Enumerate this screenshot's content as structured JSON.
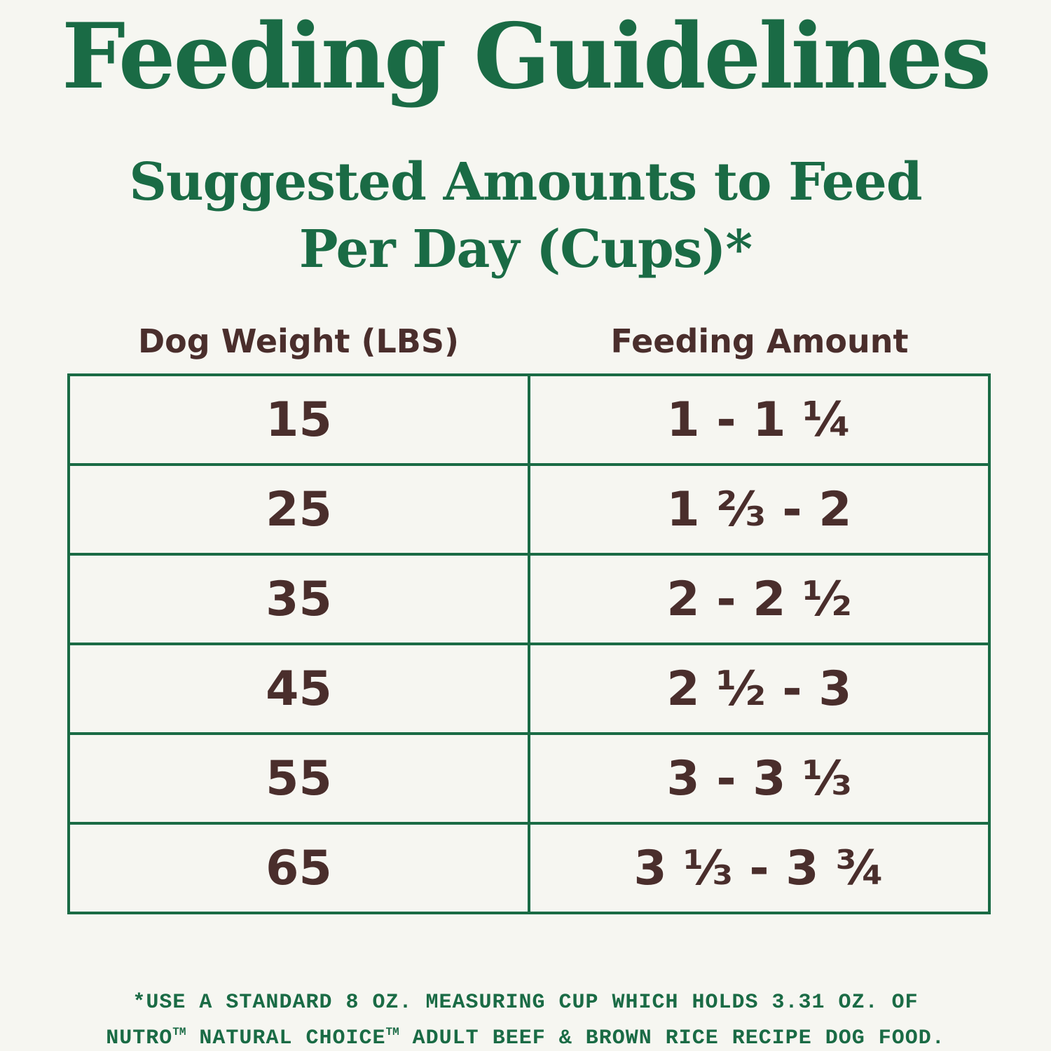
{
  "header": {
    "title": "Feeding Guidelines",
    "subtitle_line1": "Suggested Amounts to Feed",
    "subtitle_line2": "Per Day (Cups)*"
  },
  "table": {
    "columns": [
      "Dog Weight (LBS)",
      "Feeding Amount"
    ],
    "rows": [
      {
        "weight": "15",
        "amount": "1 - 1 ¼"
      },
      {
        "weight": "25",
        "amount": "1 ⅔ - 2"
      },
      {
        "weight": "35",
        "amount": "2 - 2 ½"
      },
      {
        "weight": "45",
        "amount": "2 ½ - 3"
      },
      {
        "weight": "55",
        "amount": "3 - 3 ⅓"
      },
      {
        "weight": "65",
        "amount": "3 ⅓ - 3 ¾"
      }
    ]
  },
  "footnote": {
    "line1": "*USE A STANDARD 8 OZ. MEASURING CUP WHICH HOLDS 3.31 OZ. OF",
    "line2_part1": "NUTRO",
    "line2_tm1": "TM",
    "line2_part2": " NATURAL CHOICE",
    "line2_tm2": "TM",
    "line2_part3": " ADULT BEEF & BROWN RICE RECIPE DOG FOOD."
  },
  "colors": {
    "green": "#1a6b45",
    "brown": "#4a2e2c",
    "background": "#f6f6f1"
  }
}
